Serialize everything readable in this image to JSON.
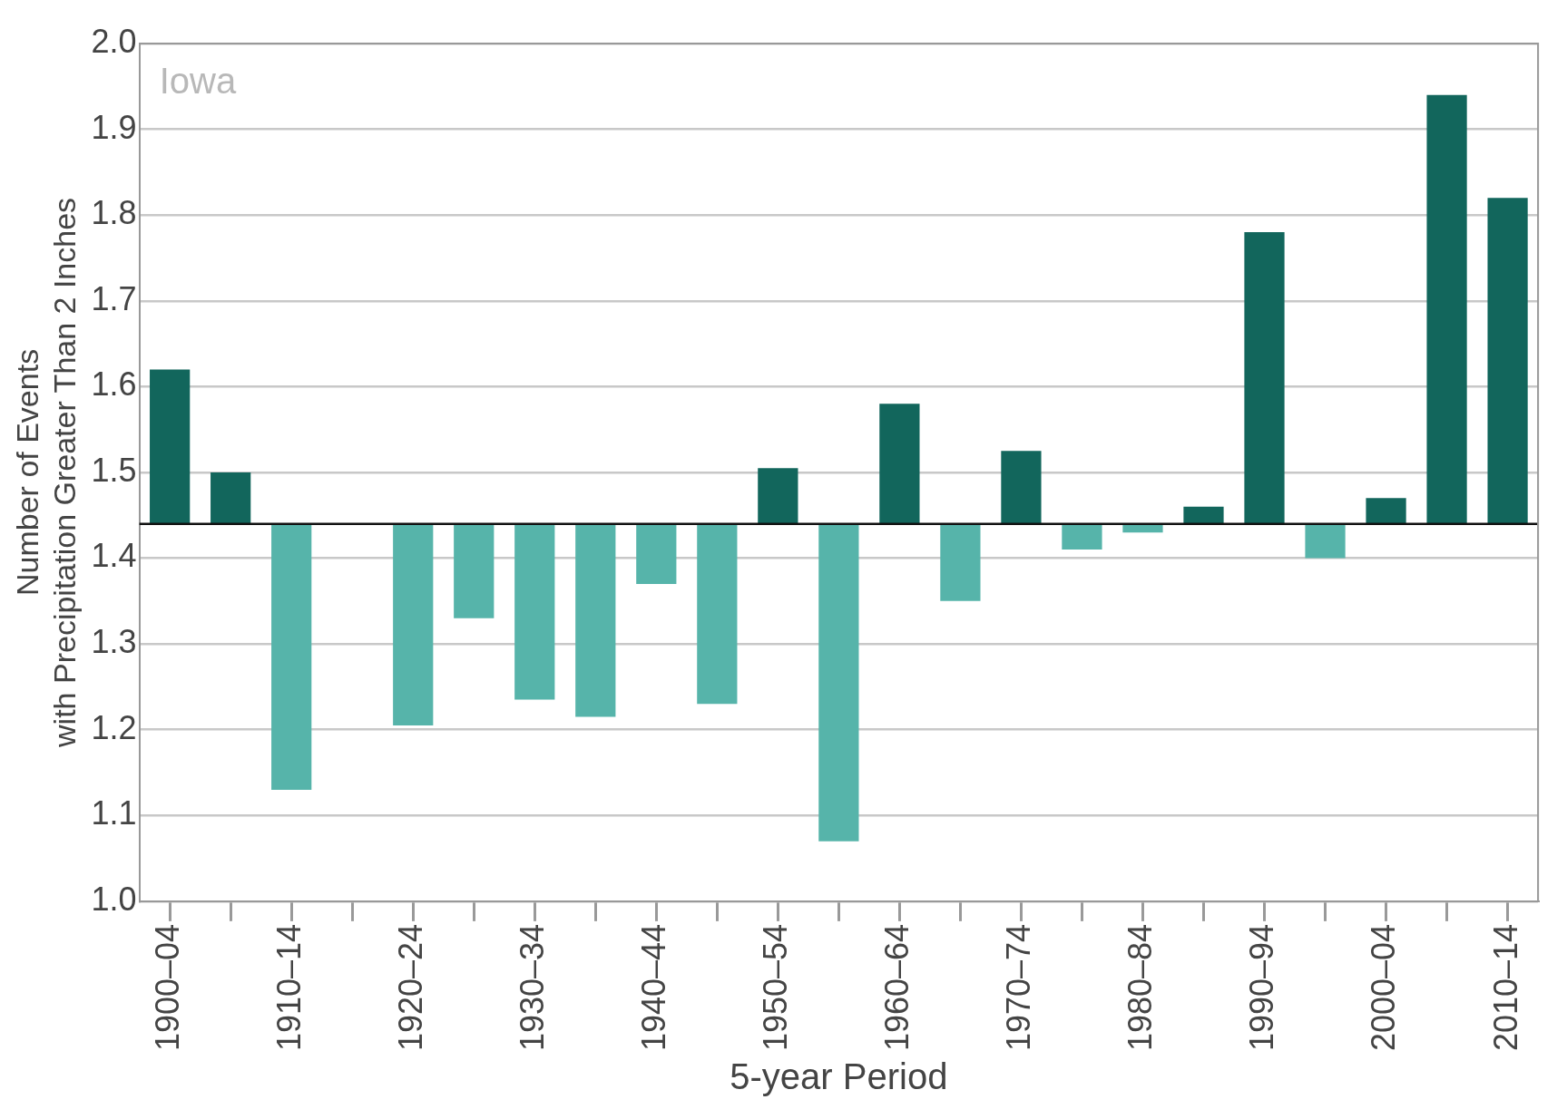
{
  "chart_data": {
    "type": "bar",
    "xlabel": "5-year Period",
    "ylabel": "Number of Events\nwith Precipitation Greater Than 2 Inches",
    "annotations": [
      "Iowa"
    ],
    "categories": [
      "1900–04",
      null,
      "1910–14",
      null,
      "1920–24",
      null,
      "1930–34",
      null,
      "1940–44",
      null,
      "1950–54",
      null,
      "1960–64",
      null,
      "1970–74",
      null,
      "1980–84",
      null,
      "1990–94",
      null,
      "2000–04",
      null,
      "2010–14"
    ],
    "base": [
      1.44,
      1.44,
      1.44,
      null,
      1.44,
      1.44,
      1.44,
      1.44,
      1.44,
      1.44,
      1.44,
      1.44,
      1.44,
      1.44,
      1.44,
      1.44,
      1.44,
      1.44,
      1.44,
      1.44,
      1.44,
      1.44,
      1.44
    ],
    "values": [
      0.18,
      0.06,
      -0.31,
      null,
      -0.235,
      -0.11,
      -0.205,
      -0.225,
      -0.07,
      -0.21,
      0.065,
      -0.37,
      0.14,
      -0.09,
      0.085,
      -0.03,
      -0.01,
      0.02,
      0.34,
      -0.04,
      0.03,
      0.5,
      0.38
    ],
    "colors": [
      "#12665c",
      "#12665c",
      "#56b4aa",
      "#56b4aa",
      "#56b4aa",
      "#56b4aa",
      "#56b4aa",
      "#56b4aa",
      "#56b4aa",
      "#56b4aa",
      "#12665c",
      "#56b4aa",
      "#12665c",
      "#56b4aa",
      "#12665c",
      "#56b4aa",
      "#56b4aa",
      "#12665c",
      "#12665c",
      "#56b4aa",
      "#12665c",
      "#12665c",
      "#12665c"
    ],
    "ylim": [
      1.0,
      2.0
    ],
    "yticks": [
      {
        "value": 1.0,
        "label": "1.0"
      },
      1.1,
      1.2,
      1.3,
      1.4,
      1.5,
      1.6,
      1.7,
      1.8,
      1.9,
      {
        "value": 2.0,
        "label": "2.0"
      }
    ],
    "ref_lines": [
      {
        "axis": "y",
        "value": 1.44,
        "color": "#111111"
      }
    ],
    "grid": "y",
    "legend": false
  }
}
